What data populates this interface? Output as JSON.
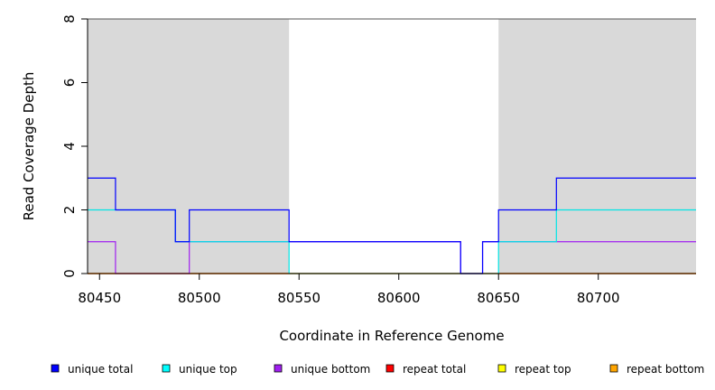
{
  "chart_data": {
    "type": "line",
    "xlabel": "Coordinate in Reference Genome",
    "ylabel": "Read Coverage Depth",
    "xlim": [
      80444,
      80749
    ],
    "ylim": [
      0,
      8
    ],
    "x_ticks": [
      80450,
      80500,
      80550,
      80600,
      80650,
      80700
    ],
    "y_ticks": [
      0,
      2,
      4,
      6,
      8
    ],
    "shaded_regions": [
      [
        80444,
        80545
      ],
      [
        80650,
        80749
      ]
    ],
    "shade_color": "#d9d9d9",
    "series": [
      {
        "name": "unique total",
        "color": "#0000ff",
        "steps": [
          [
            80444,
            3
          ],
          [
            80458,
            2
          ],
          [
            80488,
            1
          ],
          [
            80495,
            2
          ],
          [
            80545,
            1
          ],
          [
            80631,
            0
          ],
          [
            80642,
            1
          ],
          [
            80650,
            2
          ],
          [
            80679,
            3
          ],
          [
            80749,
            3
          ]
        ]
      },
      {
        "name": "unique top",
        "color": "#00e5e5",
        "steps": [
          [
            80444,
            2
          ],
          [
            80458,
            2
          ],
          [
            80488,
            1
          ],
          [
            80545,
            0
          ],
          [
            80650,
            1
          ],
          [
            80679,
            2
          ],
          [
            80749,
            2
          ]
        ]
      },
      {
        "name": "unique bottom",
        "color": "#a020f0",
        "steps": [
          [
            80444,
            1
          ],
          [
            80458,
            0
          ],
          [
            80495,
            1
          ],
          [
            80631,
            0
          ],
          [
            80642,
            1
          ],
          [
            80749,
            1
          ]
        ]
      },
      {
        "name": "repeat total",
        "color": "#ff0000",
        "steps": [
          [
            80444,
            0
          ],
          [
            80749,
            0
          ]
        ]
      },
      {
        "name": "repeat top",
        "color": "#ffff00",
        "steps": [
          [
            80444,
            0
          ],
          [
            80749,
            0
          ]
        ]
      },
      {
        "name": "repeat bottom",
        "color": "#ffa500",
        "steps": [
          [
            80444,
            0
          ],
          [
            80749,
            0
          ]
        ]
      }
    ],
    "legend": [
      {
        "name": "unique total",
        "color": "#0000ff"
      },
      {
        "name": "unique top",
        "color": "#00ffff"
      },
      {
        "name": "unique bottom",
        "color": "#a020f0"
      },
      {
        "name": "repeat total",
        "color": "#ff0000"
      },
      {
        "name": "repeat top",
        "color": "#ffff00"
      },
      {
        "name": "repeat bottom",
        "color": "#ffa500"
      }
    ],
    "legend_position": "bottom"
  }
}
